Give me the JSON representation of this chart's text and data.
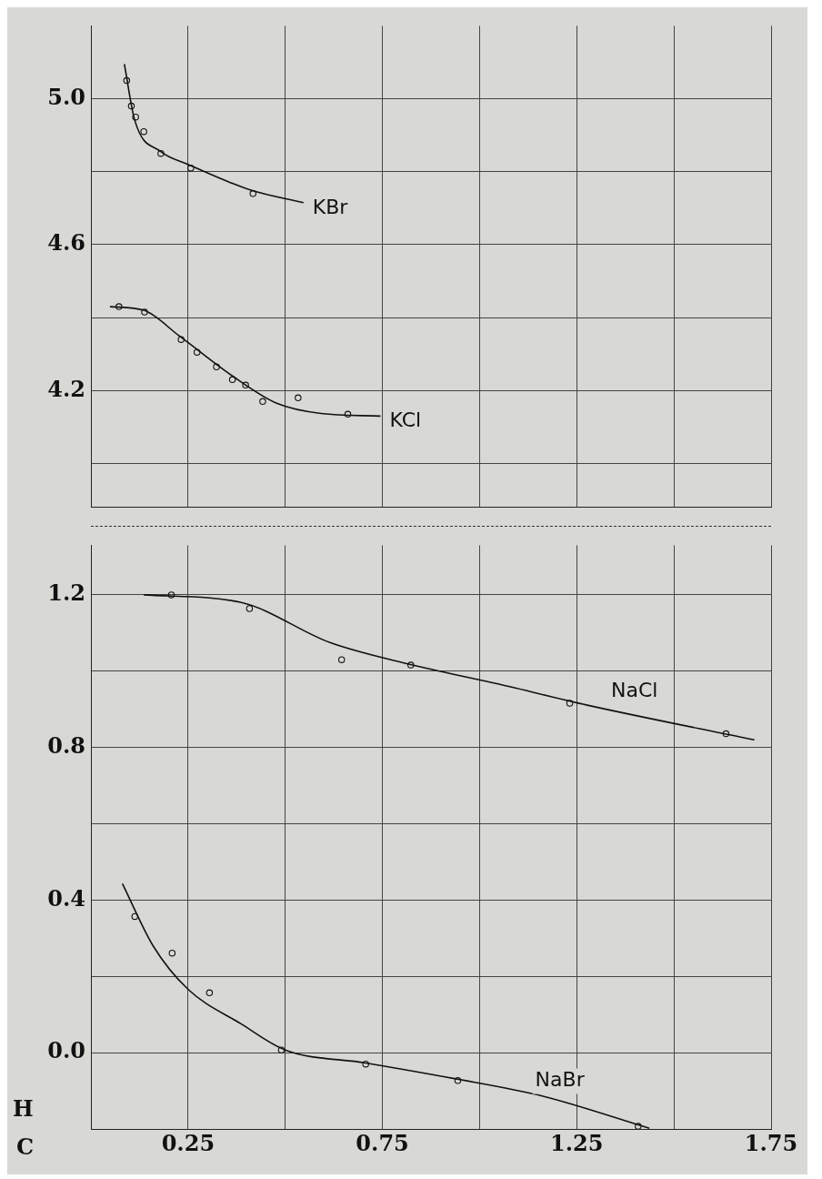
{
  "chart_data": [
    {
      "type": "line",
      "xlim": [
        0,
        1.75
      ],
      "xticks": [
        {
          "value": 0.25,
          "label": null
        },
        {
          "value": 0.5,
          "label": null
        },
        {
          "value": 0.75,
          "label": null
        },
        {
          "value": 1,
          "label": null
        },
        {
          "value": 1.25,
          "label": null
        },
        {
          "value": 1.5,
          "label": null
        },
        {
          "value": 1.75,
          "label": null
        }
      ],
      "ylim": [
        3.88,
        5.2
      ],
      "yticks": [
        {
          "value": 4.0,
          "label": null
        },
        {
          "value": 4.2,
          "label": "4.2"
        },
        {
          "value": 4.4,
          "label": null
        },
        {
          "value": 4.6,
          "label": "4.6"
        },
        {
          "value": 4.8,
          "label": null
        },
        {
          "value": 5.0,
          "label": "5.0"
        }
      ],
      "grid": true,
      "tick_labels": "y",
      "series": [
        {
          "name": "KBr",
          "type": "line",
          "color": "#111111",
          "marker": "none",
          "x": [
            0.086,
            0.113,
            0.18,
            0.25,
            0.41,
            0.547
          ],
          "values": [
            5.095,
            4.94,
            4.855,
            4.82,
            4.75,
            4.715
          ]
        },
        {
          "type": "scatter",
          "color": "#111111",
          "marker": "circle",
          "x": [
            0.092,
            0.104,
            0.115,
            0.136,
            0.18,
            0.257,
            0.417
          ],
          "values": [
            5.05,
            4.98,
            4.95,
            4.91,
            4.85,
            4.81,
            4.74
          ]
        },
        {
          "name": "KCl",
          "type": "line",
          "color": "#111111",
          "marker": "none",
          "x": [
            0.049,
            0.136,
            0.227,
            0.364,
            0.478,
            0.592,
            0.745
          ],
          "values": [
            4.43,
            4.42,
            4.35,
            4.24,
            4.165,
            4.137,
            4.13
          ]
        },
        {
          "type": "scatter",
          "color": "#111111",
          "marker": "circle",
          "x": [
            0.072,
            0.138,
            0.232,
            0.273,
            0.323,
            0.364,
            0.398,
            0.442,
            0.533,
            0.661
          ],
          "values": [
            4.43,
            4.415,
            4.34,
            4.305,
            4.265,
            4.23,
            4.215,
            4.17,
            4.18,
            4.135
          ]
        }
      ]
    },
    {
      "type": "line",
      "xlabel": "C",
      "ylabel": "H",
      "xlim": [
        0,
        1.75
      ],
      "xticks": [
        {
          "value": 0.25,
          "label": "0.25"
        },
        {
          "value": 0.5,
          "label": null
        },
        {
          "value": 0.75,
          "label": "0.75"
        },
        {
          "value": 1,
          "label": null
        },
        {
          "value": 1.25,
          "label": "1.25"
        },
        {
          "value": 1.5,
          "label": null
        },
        {
          "value": 1.75,
          "label": "1.75"
        }
      ],
      "ylim": [
        -0.2,
        1.33
      ],
      "yticks": [
        {
          "value": -0.2,
          "label": null
        },
        {
          "value": 0.0,
          "label": "0.0"
        },
        {
          "value": 0.2,
          "label": null
        },
        {
          "value": 0.4,
          "label": "0.4"
        },
        {
          "value": 0.6,
          "label": null
        },
        {
          "value": 0.8,
          "label": "0.8"
        },
        {
          "value": 1.0,
          "label": null
        },
        {
          "value": 1.2,
          "label": "1.2"
        }
      ],
      "grid": true,
      "series": [
        {
          "name": "NaCl",
          "type": "line",
          "color": "#111111",
          "marker": "none",
          "x": [
            0.136,
            0.387,
            0.615,
            0.82,
            1.05,
            1.277,
            1.707
          ],
          "values": [
            1.2,
            1.18,
            1.075,
            1.018,
            0.966,
            0.911,
            0.82
          ]
        },
        {
          "type": "scatter",
          "color": "#111111",
          "marker": "circle",
          "x": [
            0.207,
            0.408,
            0.645,
            0.823,
            1.232,
            1.634
          ],
          "values": [
            1.2,
            1.164,
            1.03,
            1.016,
            0.916,
            0.836
          ]
        },
        {
          "name": "NaBr",
          "type": "line",
          "color": "#111111",
          "marker": "none",
          "x": [
            0.081,
            0.16,
            0.25,
            0.387,
            0.5,
            0.707,
            0.935,
            1.163,
            1.437
          ],
          "values": [
            0.443,
            0.28,
            0.166,
            0.075,
            0.007,
            -0.027,
            -0.068,
            -0.114,
            -0.198
          ]
        },
        {
          "type": "scatter",
          "color": "#111111",
          "marker": "circle",
          "x": [
            0.113,
            0.209,
            0.305,
            0.49,
            0.707,
            0.944,
            1.408
          ],
          "values": [
            0.357,
            0.261,
            0.157,
            0.007,
            -0.03,
            -0.073,
            -0.193
          ]
        }
      ]
    }
  ]
}
